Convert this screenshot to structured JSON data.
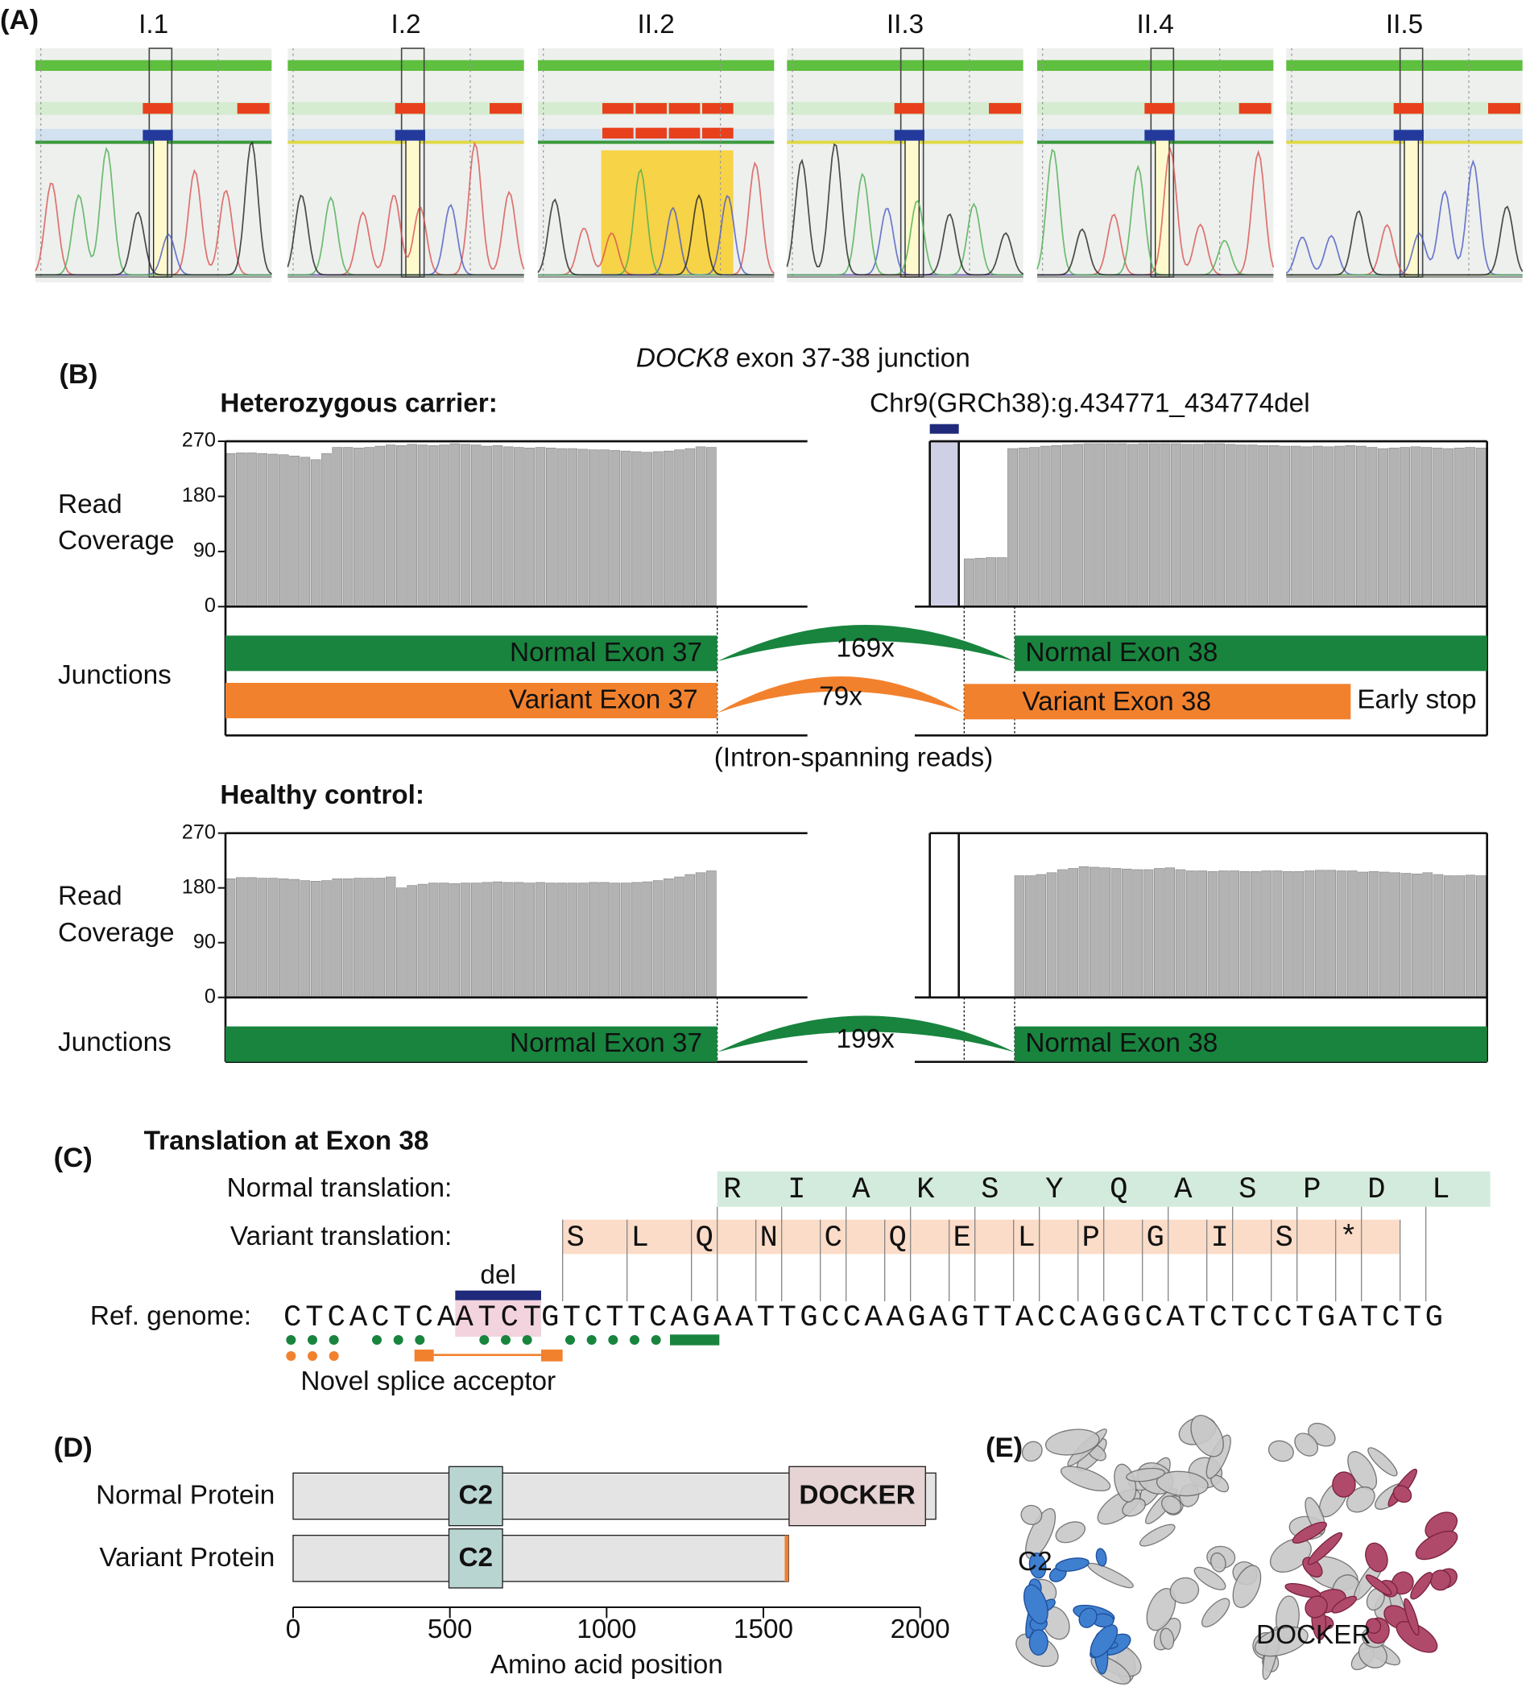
{
  "panels": [
    "(A)",
    "(B)",
    "(C)",
    "(D)",
    "(E)"
  ],
  "sanger": {
    "samples": [
      "I.1",
      "I.2",
      "II.2",
      "II.3",
      "II.4",
      "II.5"
    ]
  },
  "junction_title": {
    "gene": "DOCK8",
    "rest": "exon 37-38 junction"
  },
  "variant_label": "Chr9(GRCh38):g.434771_434774del",
  "carrier": {
    "title": "Heterozygous carrier:",
    "coverage_label": [
      "Read",
      "Coverage"
    ],
    "junctions_label": "Junctions",
    "normal_left": "Normal Exon 37",
    "normal_count": "169x",
    "normal_right": "Normal Exon 38",
    "variant_left": "Variant Exon 37",
    "variant_count": "79x",
    "variant_right": "Variant Exon 38",
    "early_stop": "Early stop",
    "note": "(Intron-spanning reads)"
  },
  "control": {
    "title": "Healthy control:",
    "coverage_label": [
      "Read",
      "Coverage"
    ],
    "junctions_label": "Junctions",
    "normal_left": "Normal Exon 37",
    "normal_count": "199x",
    "normal_right": "Normal Exon 38"
  },
  "translation": {
    "title": "Translation at Exon 38",
    "normal_label": "Normal translation:",
    "normal": [
      "R",
      "I",
      "A",
      "K",
      "S",
      "Y",
      "Q",
      "A",
      "S",
      "P",
      "D",
      "L"
    ],
    "variant_label": "Variant translation:",
    "variant": [
      "S",
      "L",
      "Q",
      "N",
      "C",
      "Q",
      "E",
      "L",
      "P",
      "G",
      "I",
      "S",
      "*"
    ],
    "del_label": "del",
    "genome_label": "Ref. genome:",
    "genome": {
      "before": "CTCACTCA",
      "deleted": "ATCT",
      "after": "GTCTTCAGAATTGCCAAGAGTTACCAGGCATCTCCTGATCTG"
    },
    "acceptor_label": "Novel splice acceptor"
  },
  "structure": {
    "c2": "C2",
    "docker": "DOCKER"
  },
  "chart_data": [
    {
      "type": "bar",
      "color": "#b3b3b3",
      "ylim": [
        0,
        270
      ],
      "yticks": [
        0,
        90,
        180,
        270
      ],
      "segments": [
        {
          "values": [
            250,
            251,
            251,
            250,
            249,
            248,
            246,
            244,
            240,
            250,
            260,
            260,
            259,
            260,
            262,
            264,
            263,
            265,
            264,
            263,
            264,
            266,
            265,
            264,
            262,
            263,
            261,
            260,
            259,
            260,
            259,
            258,
            258,
            257,
            256,
            256,
            255,
            254,
            253,
            252,
            253,
            254,
            256,
            258,
            261,
            260
          ]
        },
        {
          "values": [
            78,
            79,
            80,
            80,
            258,
            259,
            260,
            262,
            263,
            264,
            265,
            266,
            266,
            266,
            266,
            265,
            266,
            266,
            266,
            266,
            265,
            265,
            266,
            266,
            265,
            264,
            264,
            263,
            263,
            262,
            262,
            261,
            262,
            261,
            262,
            263,
            262,
            260,
            258,
            259,
            260,
            261,
            260,
            259,
            258,
            259,
            260,
            259
          ]
        }
      ]
    },
    {
      "type": "bar",
      "color": "#b3b3b3",
      "ylim": [
        0,
        270
      ],
      "yticks": [
        0,
        90,
        180,
        270
      ],
      "segments": [
        {
          "values": [
            195,
            197,
            197,
            196,
            196,
            195,
            194,
            192,
            191,
            192,
            195,
            195,
            196,
            196,
            196,
            198,
            180,
            184,
            186,
            188,
            188,
            187,
            188,
            188,
            189,
            190,
            189,
            189,
            188,
            189,
            188,
            188,
            188,
            188,
            189,
            189,
            188,
            188,
            189,
            190,
            192,
            195,
            198,
            202,
            205,
            208
          ]
        },
        {
          "values": [
            200,
            200,
            202,
            205,
            210,
            212,
            215,
            214,
            213,
            212,
            211,
            210,
            210,
            212,
            213,
            210,
            208,
            208,
            207,
            208,
            208,
            207,
            207,
            208,
            208,
            207,
            207,
            208,
            209,
            209,
            208,
            208,
            206,
            207,
            206,
            205,
            204,
            203,
            205,
            202,
            200,
            200,
            201,
            200
          ]
        }
      ]
    },
    {
      "type": "domain",
      "xlabel": "Amino acid position",
      "xlim": [
        0,
        2000
      ],
      "xticks": [
        0,
        500,
        1000,
        1500,
        2000
      ],
      "color": "#e4e4e4",
      "proteins": [
        {
          "name": "Normal Protein",
          "length": 2050,
          "domains": [
            {
              "name": "C2",
              "start": 497,
              "end": 668,
              "color": "#b9d5d2"
            },
            {
              "name": "DOCKER",
              "start": 1582,
              "end": 2017,
              "color": "#e6d3d3"
            }
          ]
        },
        {
          "name": "Variant Protein",
          "length": 1580,
          "frameshift": [
            1568,
            1580
          ],
          "frameshift_color": "#f07f2c",
          "domains": [
            {
              "name": "C2",
              "start": 497,
              "end": 668,
              "color": "#b9d5d2"
            }
          ]
        }
      ]
    }
  ]
}
